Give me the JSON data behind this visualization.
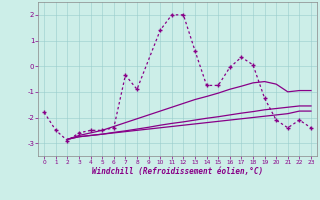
{
  "xlabel": "Windchill (Refroidissement éolien,°C)",
  "bg_color": "#cceee8",
  "grid_color": "#99cccc",
  "line_color": "#880088",
  "xlim": [
    -0.5,
    23.5
  ],
  "ylim": [
    -3.5,
    2.5
  ],
  "xticks": [
    0,
    1,
    2,
    3,
    4,
    5,
    6,
    7,
    8,
    9,
    10,
    11,
    12,
    13,
    14,
    15,
    16,
    17,
    18,
    19,
    20,
    21,
    22,
    23
  ],
  "yticks": [
    -3,
    -2,
    -1,
    0,
    1,
    2
  ],
  "line1_x": [
    0,
    1,
    2,
    3,
    4,
    5,
    6,
    7,
    8,
    10,
    11,
    12,
    13,
    14,
    15,
    16,
    17,
    18,
    19,
    20,
    21,
    22,
    23
  ],
  "line1_y": [
    -1.8,
    -2.5,
    -2.9,
    -2.6,
    -2.5,
    -2.5,
    -2.4,
    -0.35,
    -0.9,
    1.4,
    2.0,
    2.0,
    0.6,
    -0.75,
    -0.75,
    -0.05,
    0.35,
    0.05,
    -1.25,
    -2.1,
    -2.4,
    -2.1,
    -2.4
  ],
  "line2_x": [
    2,
    3,
    4,
    5,
    6,
    7,
    8,
    9,
    10,
    11,
    12,
    13,
    14,
    15,
    16,
    17,
    18,
    19,
    20,
    21,
    22,
    23
  ],
  "line2_y": [
    -2.85,
    -2.75,
    -2.7,
    -2.65,
    -2.6,
    -2.55,
    -2.5,
    -2.45,
    -2.4,
    -2.35,
    -2.3,
    -2.25,
    -2.2,
    -2.15,
    -2.1,
    -2.05,
    -2.0,
    -1.95,
    -1.9,
    -1.85,
    -1.75,
    -1.75
  ],
  "line3_x": [
    2,
    3,
    4,
    5,
    6,
    7,
    8,
    9,
    10,
    11,
    12,
    13,
    14,
    15,
    16,
    17,
    18,
    19,
    20,
    21,
    22,
    23
  ],
  "line3_y": [
    -2.85,
    -2.75,
    -2.7,
    -2.65,
    -2.58,
    -2.52,
    -2.45,
    -2.38,
    -2.3,
    -2.23,
    -2.17,
    -2.1,
    -2.03,
    -1.97,
    -1.9,
    -1.83,
    -1.77,
    -1.7,
    -1.65,
    -1.6,
    -1.55,
    -1.55
  ],
  "line4_x": [
    2,
    3,
    4,
    5,
    6,
    7,
    8,
    9,
    10,
    11,
    12,
    13,
    14,
    15,
    16,
    17,
    18,
    19,
    20,
    21,
    22,
    23
  ],
  "line4_y": [
    -2.85,
    -2.7,
    -2.6,
    -2.5,
    -2.35,
    -2.2,
    -2.05,
    -1.9,
    -1.75,
    -1.6,
    -1.45,
    -1.3,
    -1.18,
    -1.05,
    -0.9,
    -0.78,
    -0.65,
    -0.6,
    -0.7,
    -1.0,
    -0.95,
    -0.95
  ]
}
